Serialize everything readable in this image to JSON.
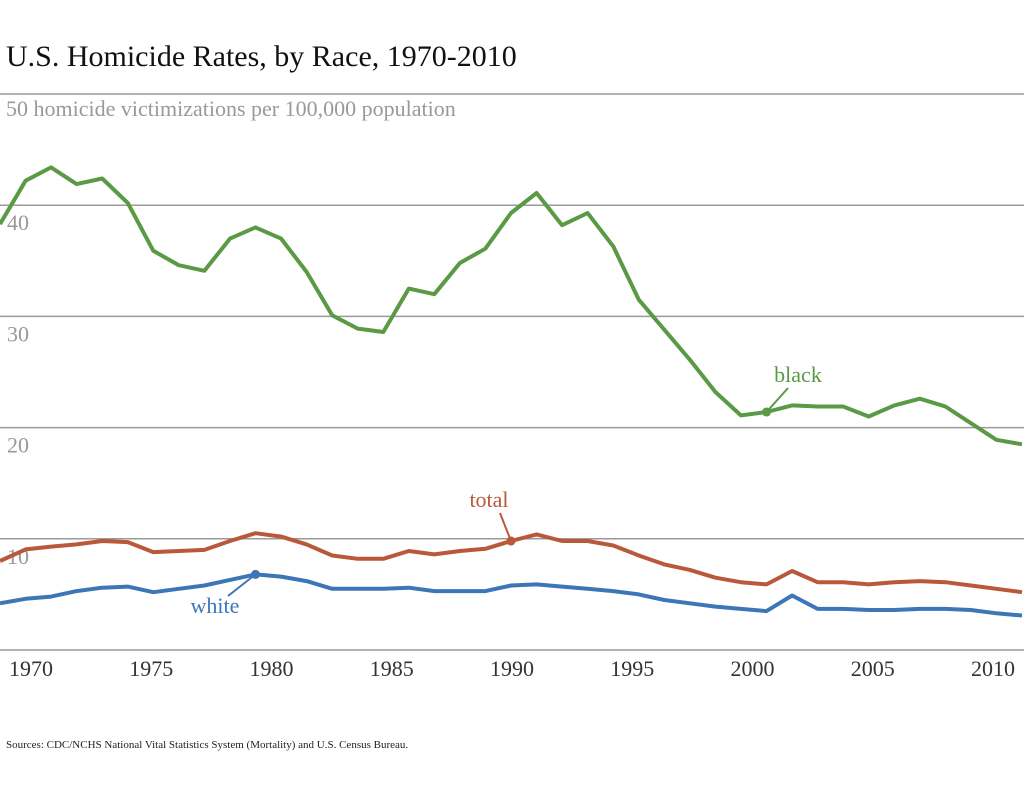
{
  "chart_data": {
    "type": "line",
    "title": "U.S. Homicide Rates, by Race, 1970-2010",
    "ylabel": "50 homicide victimizations per 100,000 population",
    "source": "Sources: CDC/NCHS National Vital Statistics System (Mortality) and U.S. Census Bureau.",
    "xlim": [
      1970,
      2010
    ],
    "ylim": [
      0,
      50
    ],
    "grid": true,
    "x_ticks": [
      "1970",
      "1975",
      "1980",
      "1985",
      "1990",
      "1995",
      "2000",
      "2005",
      "2010"
    ],
    "y_ticks": [
      "10",
      "20",
      "30",
      "40"
    ],
    "x": [
      1970,
      1971,
      1972,
      1973,
      1974,
      1975,
      1976,
      1977,
      1978,
      1979,
      1980,
      1981,
      1982,
      1983,
      1984,
      1985,
      1986,
      1987,
      1988,
      1989,
      1990,
      1991,
      1992,
      1993,
      1994,
      1995,
      1996,
      1997,
      1998,
      1999,
      2000,
      2001,
      2002,
      2003,
      2004,
      2005,
      2006,
      2007,
      2008,
      2009,
      2010
    ],
    "series": [
      {
        "name": "black",
        "color": "#5b9a45",
        "label_year": 2000,
        "values": [
          38.3,
          42.2,
          43.4,
          41.9,
          42.4,
          40.2,
          35.9,
          34.6,
          34.1,
          37.0,
          38.0,
          37.0,
          34.0,
          30.1,
          28.9,
          28.6,
          32.5,
          32.0,
          34.8,
          36.1,
          39.3,
          41.1,
          38.2,
          39.3,
          36.3,
          31.5,
          28.8,
          26.1,
          23.2,
          21.1,
          21.4,
          22.0,
          21.9,
          21.9,
          21.0,
          22.0,
          22.6,
          21.9,
          20.4,
          18.9,
          18.5
        ]
      },
      {
        "name": "total",
        "color": "#b9583a",
        "label_year": 1990,
        "values": [
          8.0,
          9.05,
          9.3,
          9.5,
          9.8,
          9.7,
          8.8,
          8.9,
          9.0,
          9.8,
          10.5,
          10.2,
          9.5,
          8.5,
          8.2,
          8.2,
          8.9,
          8.6,
          8.9,
          9.1,
          9.8,
          10.4,
          9.8,
          9.8,
          9.4,
          8.5,
          7.7,
          7.2,
          6.5,
          6.1,
          5.9,
          7.1,
          6.1,
          6.1,
          5.9,
          6.1,
          6.2,
          6.1,
          5.8,
          5.5,
          5.2
        ]
      },
      {
        "name": "white",
        "color": "#3d76b6",
        "label_year": 1980,
        "values": [
          4.2,
          4.6,
          4.8,
          5.3,
          5.6,
          5.7,
          5.2,
          5.5,
          5.8,
          6.3,
          6.8,
          6.6,
          6.2,
          5.5,
          5.5,
          5.5,
          5.6,
          5.3,
          5.3,
          5.3,
          5.8,
          5.9,
          5.7,
          5.5,
          5.3,
          5.0,
          4.5,
          4.2,
          3.9,
          3.7,
          3.5,
          4.9,
          3.7,
          3.7,
          3.6,
          3.6,
          3.7,
          3.7,
          3.6,
          3.3,
          3.1
        ]
      }
    ]
  }
}
